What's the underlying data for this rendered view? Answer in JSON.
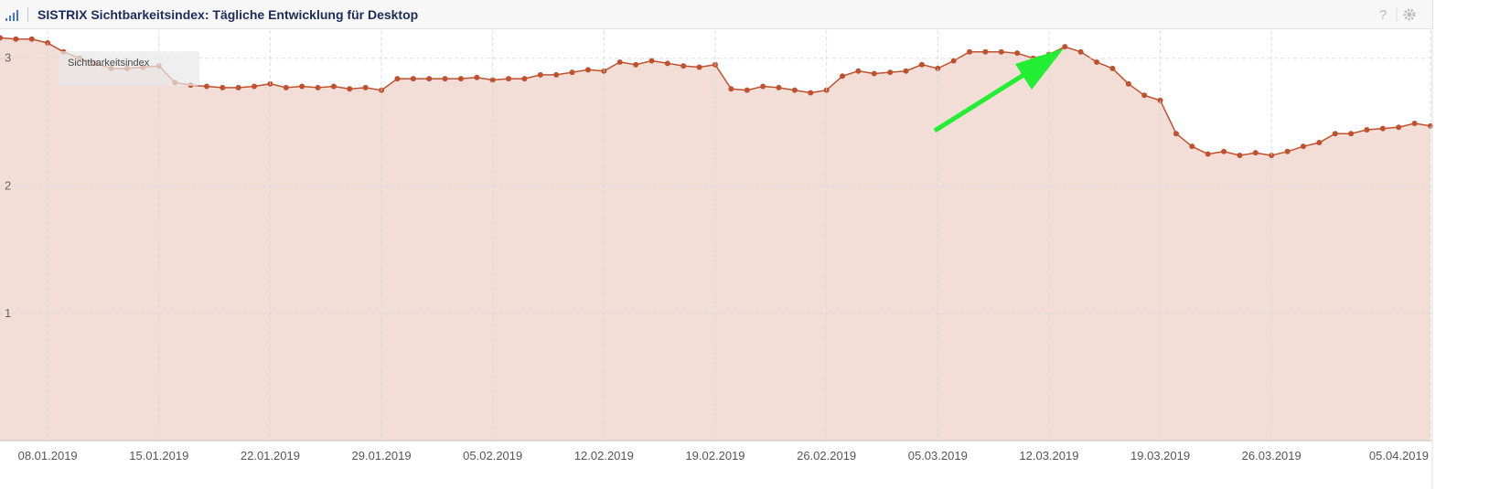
{
  "chart_data": {
    "type": "area",
    "title": "SISTRIX Sichtbarkeitsindex: Tägliche Entwicklung für Desktop",
    "x": [
      "05.01.2019",
      "06.01.2019",
      "07.01.2019",
      "08.01.2019",
      "09.01.2019",
      "10.01.2019",
      "11.01.2019",
      "12.01.2019",
      "13.01.2019",
      "14.01.2019",
      "15.01.2019",
      "16.01.2019",
      "17.01.2019",
      "18.01.2019",
      "19.01.2019",
      "20.01.2019",
      "21.01.2019",
      "22.01.2019",
      "23.01.2019",
      "24.01.2019",
      "25.01.2019",
      "26.01.2019",
      "27.01.2019",
      "28.01.2019",
      "29.01.2019",
      "30.01.2019",
      "31.01.2019",
      "01.02.2019",
      "02.02.2019",
      "03.02.2019",
      "04.02.2019",
      "05.02.2019",
      "06.02.2019",
      "07.02.2019",
      "08.02.2019",
      "09.02.2019",
      "10.02.2019",
      "11.02.2019",
      "12.02.2019",
      "13.02.2019",
      "14.02.2019",
      "15.02.2019",
      "16.02.2019",
      "17.02.2019",
      "18.02.2019",
      "19.02.2019",
      "20.02.2019",
      "21.02.2019",
      "22.02.2019",
      "23.02.2019",
      "24.02.2019",
      "25.02.2019",
      "26.02.2019",
      "27.02.2019",
      "28.02.2019",
      "01.03.2019",
      "02.03.2019",
      "03.03.2019",
      "04.03.2019",
      "05.03.2019",
      "06.03.2019",
      "07.03.2019",
      "08.03.2019",
      "09.03.2019",
      "10.03.2019",
      "11.03.2019",
      "12.03.2019",
      "13.03.2019",
      "14.03.2019",
      "15.03.2019",
      "16.03.2019",
      "17.03.2019",
      "18.03.2019",
      "19.03.2019",
      "20.03.2019",
      "21.03.2019",
      "22.03.2019",
      "23.03.2019",
      "24.03.2019",
      "25.03.2019",
      "26.03.2019",
      "27.03.2019",
      "28.03.2019",
      "29.03.2019",
      "30.03.2019",
      "31.03.2019",
      "01.04.2019",
      "02.04.2019",
      "03.04.2019",
      "04.04.2019",
      "05.04.2019"
    ],
    "series": [
      {
        "name": "Sichtbarkeitsindex",
        "color": "#c0512f",
        "fill": "#f2ded7",
        "values": [
          3.16,
          3.15,
          3.15,
          3.12,
          3.05,
          3.0,
          2.96,
          2.92,
          2.92,
          2.93,
          2.94,
          2.81,
          2.79,
          2.78,
          2.77,
          2.77,
          2.78,
          2.8,
          2.77,
          2.78,
          2.77,
          2.78,
          2.76,
          2.77,
          2.75,
          2.84,
          2.84,
          2.84,
          2.84,
          2.84,
          2.85,
          2.83,
          2.84,
          2.84,
          2.87,
          2.87,
          2.89,
          2.91,
          2.9,
          2.97,
          2.95,
          2.98,
          2.96,
          2.94,
          2.93,
          2.95,
          2.76,
          2.75,
          2.78,
          2.77,
          2.75,
          2.73,
          2.75,
          2.86,
          2.9,
          2.88,
          2.89,
          2.9,
          2.95,
          2.92,
          2.98,
          3.05,
          3.05,
          3.05,
          3.04,
          3.0,
          3.03,
          3.09,
          3.05,
          2.97,
          2.92,
          2.8,
          2.71,
          2.67,
          2.41,
          2.31,
          2.25,
          2.27,
          2.24,
          2.26,
          2.24,
          2.27,
          2.31,
          2.34,
          2.41,
          2.41,
          2.44,
          2.45,
          2.46,
          2.49,
          2.47
        ]
      }
    ],
    "xlim": [
      "05.01.2019",
      "05.04.2019"
    ],
    "xticks": [
      "08.01.2019",
      "15.01.2019",
      "22.01.2019",
      "29.01.2019",
      "05.02.2019",
      "12.02.2019",
      "19.02.2019",
      "26.02.2019",
      "05.03.2019",
      "12.03.2019",
      "19.03.2019",
      "26.03.2019",
      "05.04.2019"
    ],
    "ylim": [
      0,
      3.22
    ],
    "yticks": [
      1,
      2,
      3
    ],
    "grid": true
  }
}
